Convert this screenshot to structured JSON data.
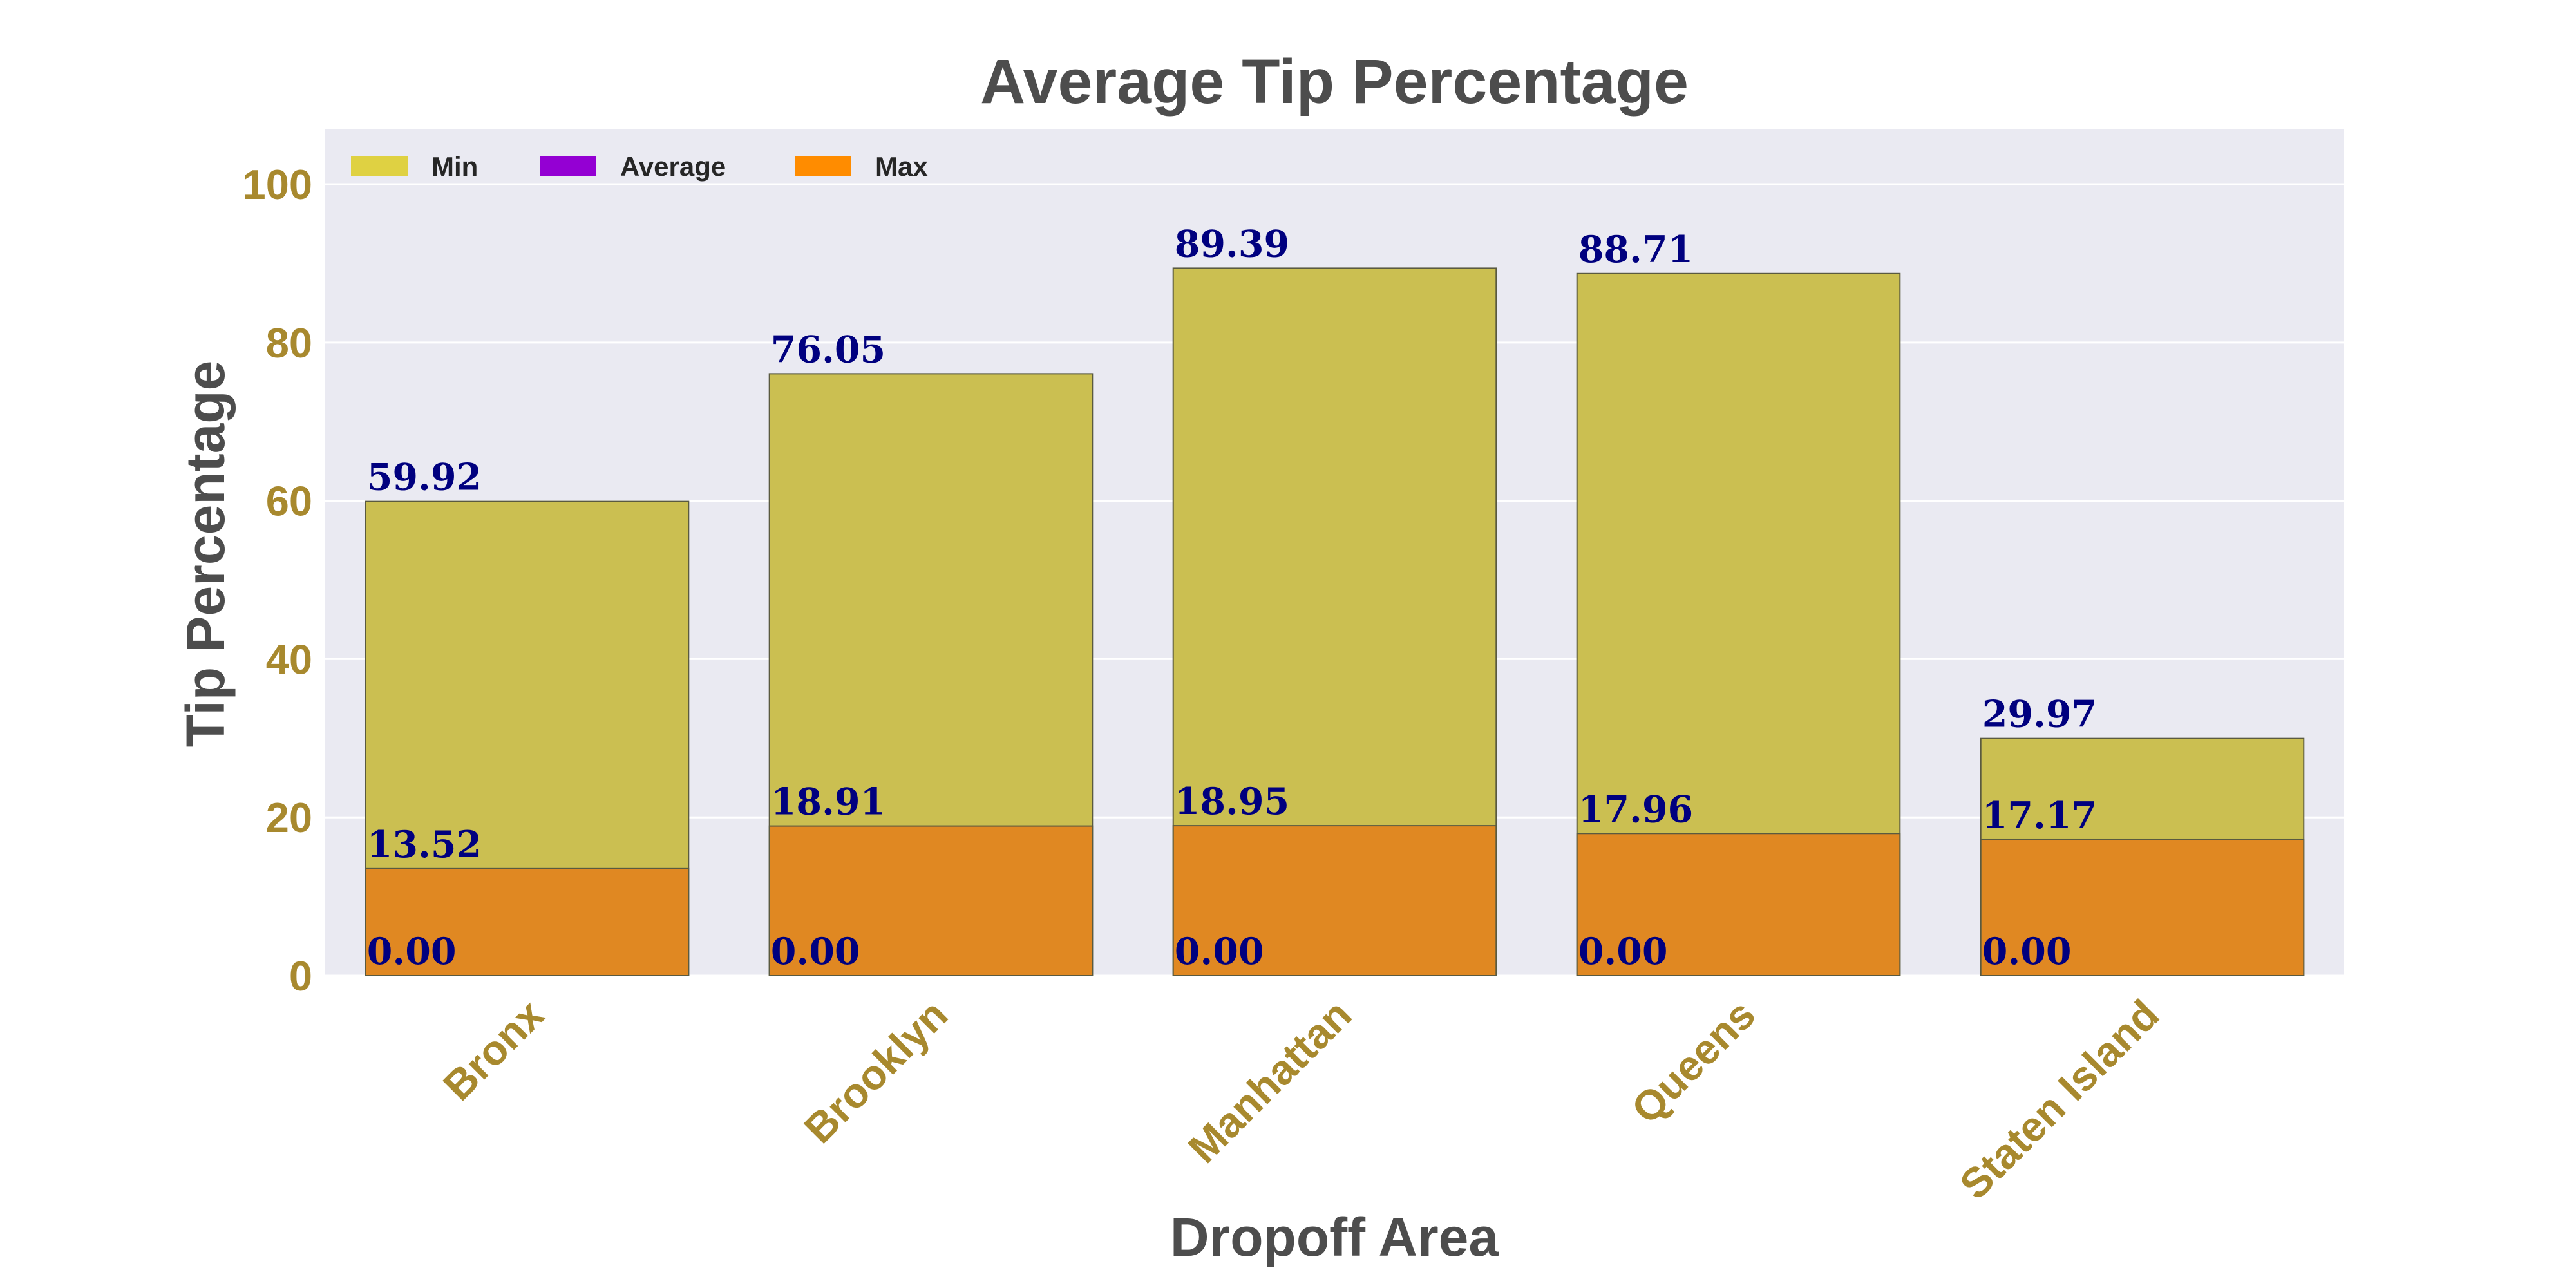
{
  "chart_data": {
    "type": "bar",
    "title": "Average Tip Percentage",
    "xlabel": "Dropoff Area",
    "ylabel": "Tip Percentage",
    "categories": [
      "Bronx",
      "Brooklyn",
      "Manhattan",
      "Queens",
      "Staten Island"
    ],
    "series": [
      {
        "name": "Min",
        "color": "#cbbf51",
        "legend_color": "#dfd142",
        "values": [
          0.0,
          0.0,
          0.0,
          0.0,
          0.0
        ]
      },
      {
        "name": "Average",
        "color": "#e08822",
        "legend_color": "#9400d3",
        "values": [
          13.52,
          18.91,
          18.95,
          17.96,
          17.17
        ]
      },
      {
        "name": "Max",
        "color": "#cbbf51",
        "legend_color": "#ff8c00",
        "values": [
          59.92,
          76.05,
          89.39,
          88.71,
          29.97
        ]
      }
    ],
    "data_labels": {
      "min": [
        "0.00",
        "0.00",
        "0.00",
        "0.00",
        "0.00"
      ],
      "average": [
        "13.52",
        "18.91",
        "18.95",
        "17.96",
        "17.17"
      ],
      "max": [
        "59.92",
        "76.05",
        "89.39",
        "88.71",
        "29.97"
      ]
    },
    "yticks": [
      "0",
      "20",
      "40",
      "60",
      "80",
      "100"
    ],
    "ytick_values": [
      0,
      20,
      40,
      60,
      80,
      100
    ],
    "ylim": [
      0,
      107
    ],
    "grid": true,
    "legend_position": "top-left",
    "background_color": "#eaeaf2",
    "grid_color": "#ffffff",
    "tick_label_color": "#a8892e",
    "data_label_color": "#00007f"
  }
}
